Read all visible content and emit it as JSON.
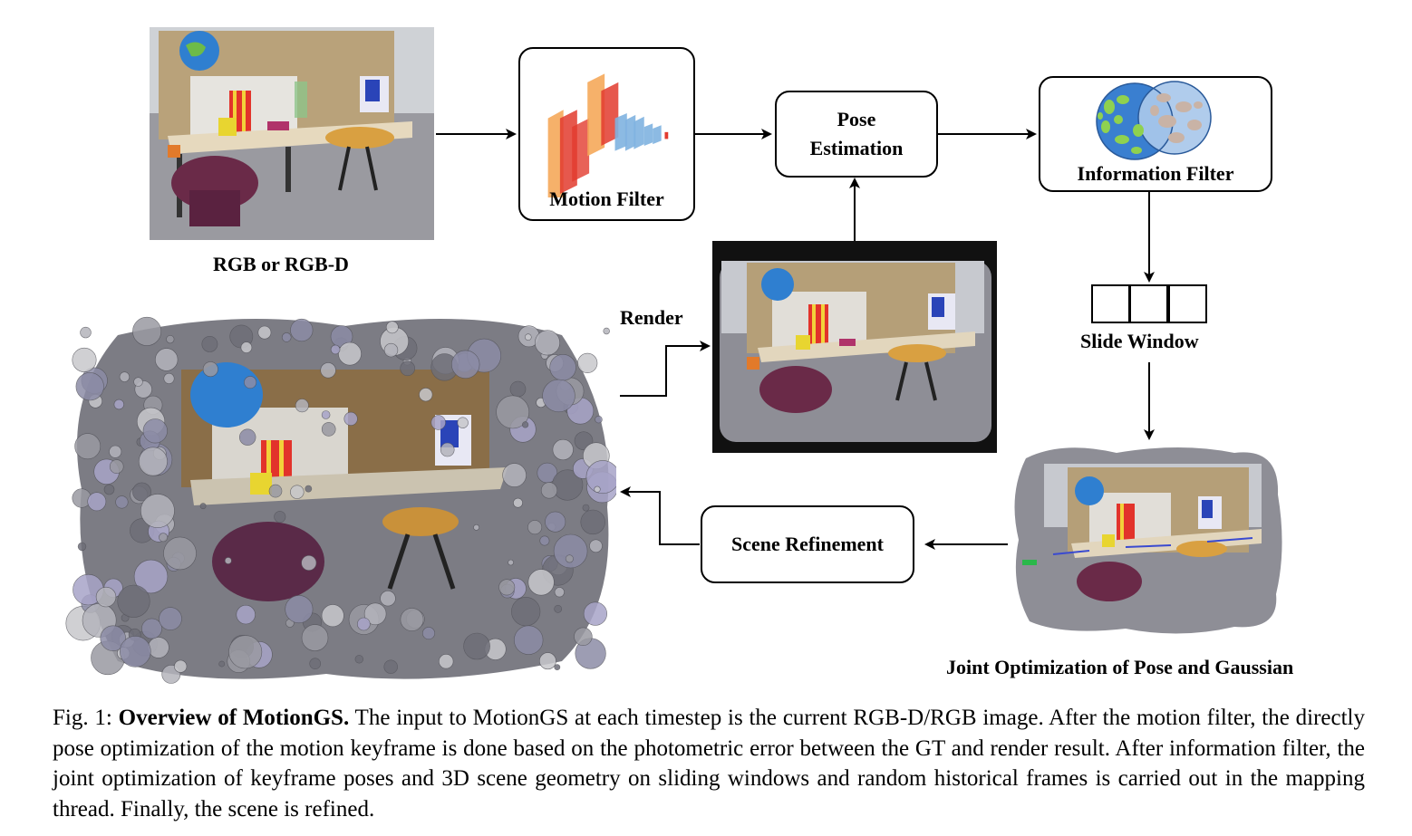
{
  "labels": {
    "rgb_input": "RGB or RGB-D",
    "motion_filter": "Motion Filter",
    "pose_estimation_line1": "Pose",
    "pose_estimation_line2": "Estimation",
    "information_filter": "Information Filter",
    "render": "Render",
    "slide_window": "Slide Window",
    "scene_refinement": "Scene Refinement",
    "joint_optimization": "Joint Optimization of Pose and Gaussian"
  },
  "caption": {
    "prefix": "Fig. 1: ",
    "title": "Overview of MotionGS.",
    "body": " The input to MotionGS at each timestep is the current RGB-D/RGB image. After the motion filter, the directly pose optimization of the motion keyframe is done based on the photometric error between the GT and render result. After information filter, the joint optimization of keyframe poses and 3D scene geometry on sliding windows and random historical frames is carried out in the mapping thread. Finally, the scene is refined."
  },
  "colors": {
    "filter_orange": "#f5a85a",
    "filter_red": "#e23b2e",
    "filter_blue": "#7fb3e0",
    "venn_blue": "#3a7fd0",
    "venn_green": "#8fd14f",
    "venn_light_blue": "#a9c8ea"
  }
}
